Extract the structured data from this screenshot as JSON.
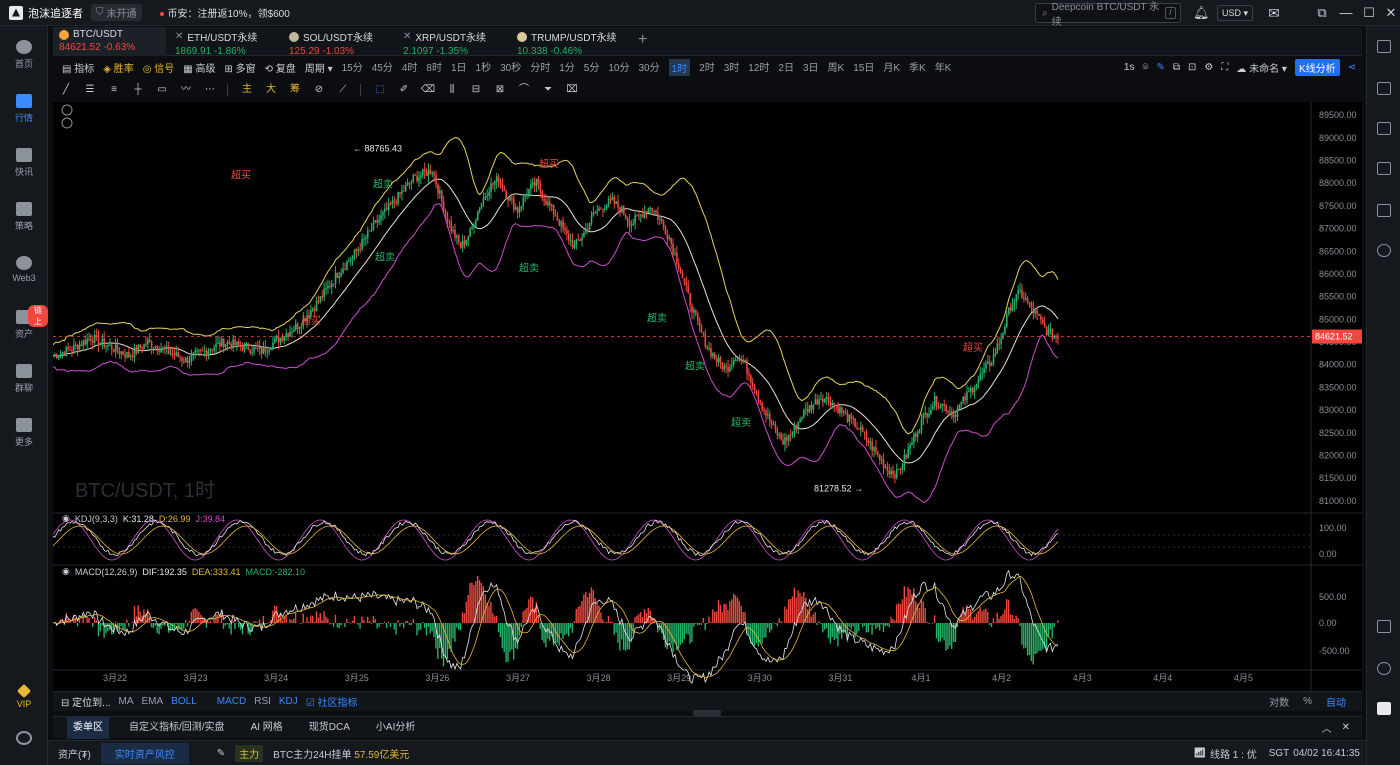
{
  "app": {
    "name": "泡沫追逐者",
    "account_status": "未开通",
    "notice": "币安：注册返10%，领$600"
  },
  "search": {
    "placeholder": "Deepcoin BTC/USDT 永续",
    "shortcut": "/"
  },
  "currency": "USD",
  "sidebar": {
    "items": [
      {
        "label": "首页",
        "icon": "home-icon"
      },
      {
        "label": "行情",
        "icon": "chart-bars-icon",
        "active": true
      },
      {
        "label": "快讯",
        "icon": "news-icon"
      },
      {
        "label": "策略",
        "icon": "robot-icon"
      },
      {
        "label": "Web3",
        "icon": "web3-icon"
      },
      {
        "label": "资产",
        "icon": "wallet-icon",
        "badge": "链上"
      },
      {
        "label": "群聊",
        "icon": "chat-icon"
      },
      {
        "label": "更多",
        "icon": "more-icon"
      }
    ],
    "vip": "VIP"
  },
  "tabs": [
    {
      "symbol": "BTC/USDT",
      "price": "84621.52",
      "change": "-0.63%",
      "coin_color": "#f2a33a"
    },
    {
      "symbol": "ETH/USDT永续",
      "price": "1869.91",
      "change": "-1.86%",
      "coin_color": "#7f8ccf"
    },
    {
      "symbol": "SOL/USDT永续",
      "price": "125.29",
      "change": "-1.03%",
      "coin_color": "#c4b89a"
    },
    {
      "symbol": "XRP/USDT永续",
      "price": "2.1097",
      "change": "-1.35%",
      "coin_color": "#9aa0a8"
    },
    {
      "symbol": "TRUMP/USDT永续",
      "price": "10.338",
      "change": "-0.46%",
      "coin_color": "#d8c89a"
    }
  ],
  "toolbar": {
    "items": [
      "指标",
      "胜率",
      "信号",
      "高级",
      "多窗",
      "复盘",
      "周期"
    ],
    "periods": [
      "15分",
      "45分",
      "4时",
      "8时",
      "1日",
      "1秒",
      "30秒",
      "分时",
      "1分",
      "5分",
      "10分",
      "30分",
      "1时",
      "2时",
      "3时",
      "12时",
      "2日",
      "3日",
      "周K",
      "15日",
      "月K",
      "季K",
      "年K"
    ],
    "selected_period": "1时",
    "right": {
      "interval": "1s",
      "template": "未命名",
      "kline_btn": "K线分析"
    }
  },
  "drawtools": [
    "主",
    "大",
    "筹"
  ],
  "chart": {
    "watermark": "BTC/USDT, 1时",
    "current_price": "84621.52",
    "high_label": "88765.43",
    "low_label": "81278.52",
    "signals": [
      {
        "text": "超买",
        "color": "#f0483e"
      },
      {
        "text": "超卖",
        "color": "#26b36a"
      }
    ],
    "kdj": {
      "name": "KDJ(9,3,3)",
      "k": "K:31.28",
      "d": "D:26.99",
      "j": "J:39.84"
    },
    "macd": {
      "name": "MACD(12,26,9)",
      "dif": "DIF:192.35",
      "dea": "DEA:333.41",
      "macd": "MACD:-282.10"
    },
    "right_controls": [
      "对数",
      "%",
      "自动"
    ]
  },
  "chart_data": {
    "type": "candlestick",
    "title": "BTC/USDT, 1时",
    "x_ticks": [
      "3月22",
      "3月23",
      "3月24",
      "3月25",
      "3月26",
      "3月27",
      "3月28",
      "3月29",
      "3月30",
      "3月31",
      "4月1",
      "4月2",
      "4月3",
      "4月4",
      "4月5"
    ],
    "y_ticks": [
      "89500.00",
      "89000.00",
      "88500.00",
      "88000.00",
      "87500.00",
      "87000.00",
      "86500.00",
      "86000.00",
      "85500.00",
      "85000.00",
      "84500.00",
      "84000.00",
      "83500.00",
      "83000.00",
      "82500.00",
      "82000.00",
      "81500.00",
      "81000.00"
    ],
    "ylim": [
      80800,
      89700
    ],
    "kdj_ticks": [
      "100.00",
      "0.00"
    ],
    "macd_ticks": [
      "500.00",
      "0.00",
      "-500.00"
    ],
    "high": 88765.43,
    "low": 81278.52,
    "last": 84621.52,
    "series": [
      {
        "name": "BTC/USDT",
        "close_path": [
          [
            0,
            84200
          ],
          [
            10,
            84350
          ],
          [
            20,
            84600
          ],
          [
            30,
            84400
          ],
          [
            40,
            84200
          ],
          [
            50,
            84500
          ],
          [
            60,
            84300
          ],
          [
            70,
            84100
          ],
          [
            80,
            84300
          ],
          [
            90,
            84500
          ],
          [
            100,
            84400
          ],
          [
            110,
            84300
          ],
          [
            120,
            84600
          ],
          [
            130,
            84900
          ],
          [
            140,
            85400
          ],
          [
            150,
            86000
          ],
          [
            160,
            86500
          ],
          [
            170,
            87100
          ],
          [
            180,
            87600
          ],
          [
            190,
            88100
          ],
          [
            200,
            88300
          ],
          [
            205,
            87600
          ],
          [
            210,
            87000
          ],
          [
            215,
            86600
          ],
          [
            220,
            86900
          ],
          [
            225,
            87500
          ],
          [
            230,
            87900
          ],
          [
            235,
            88100
          ],
          [
            240,
            87700
          ],
          [
            245,
            87400
          ],
          [
            250,
            87800
          ],
          [
            255,
            88000
          ],
          [
            260,
            87600
          ],
          [
            265,
            87300
          ],
          [
            270,
            86900
          ],
          [
            275,
            86600
          ],
          [
            280,
            86900
          ],
          [
            285,
            87300
          ],
          [
            290,
            87500
          ],
          [
            295,
            87600
          ],
          [
            300,
            87400
          ],
          [
            305,
            87100
          ],
          [
            310,
            87300
          ],
          [
            315,
            87500
          ],
          [
            320,
            87200
          ],
          [
            325,
            86800
          ],
          [
            330,
            86200
          ],
          [
            335,
            85500
          ],
          [
            340,
            84900
          ],
          [
            345,
            84400
          ],
          [
            350,
            84100
          ],
          [
            355,
            83900
          ],
          [
            360,
            84200
          ],
          [
            365,
            84000
          ],
          [
            370,
            83500
          ],
          [
            375,
            83000
          ],
          [
            380,
            82600
          ],
          [
            385,
            82300
          ],
          [
            390,
            82500
          ],
          [
            395,
            82900
          ],
          [
            400,
            83100
          ],
          [
            405,
            83300
          ],
          [
            410,
            83200
          ],
          [
            415,
            83000
          ],
          [
            420,
            82800
          ],
          [
            425,
            82600
          ],
          [
            430,
            82300
          ],
          [
            435,
            82000
          ],
          [
            440,
            81700
          ],
          [
            445,
            81600
          ],
          [
            450,
            82000
          ],
          [
            455,
            82500
          ],
          [
            460,
            82900
          ],
          [
            465,
            83200
          ],
          [
            470,
            83100
          ],
          [
            475,
            82900
          ],
          [
            480,
            83200
          ],
          [
            485,
            83500
          ],
          [
            490,
            83800
          ],
          [
            495,
            84100
          ],
          [
            500,
            84600
          ],
          [
            505,
            85300
          ],
          [
            510,
            85600
          ],
          [
            515,
            85300
          ],
          [
            520,
            85000
          ],
          [
            525,
            84700
          ],
          [
            530,
            84600
          ]
        ]
      }
    ],
    "n_points": 531
  },
  "bottom": {
    "locate": "定位到...",
    "indicators": [
      "MA",
      "EMA",
      "BOLL",
      "MACD",
      "RSI",
      "KDJ"
    ],
    "community": "社区指标",
    "right": [
      "对数",
      "%",
      "自动"
    ]
  },
  "panels": {
    "tabs": [
      "委单区",
      "自定义指标/回测/实盘",
      "AI 网格",
      "现货DCA",
      "小AI分析"
    ],
    "active": "委单区"
  },
  "statusbar": {
    "assets": "资产(₮)",
    "risk": "实时资产风控",
    "main_tag": "主力",
    "ticker_text": "BTC主力24H挂单",
    "ticker_value": "57.59亿美元",
    "line": "线路 1 : 优",
    "tz": "SGT",
    "datetime": "04/02 16:41:35"
  }
}
